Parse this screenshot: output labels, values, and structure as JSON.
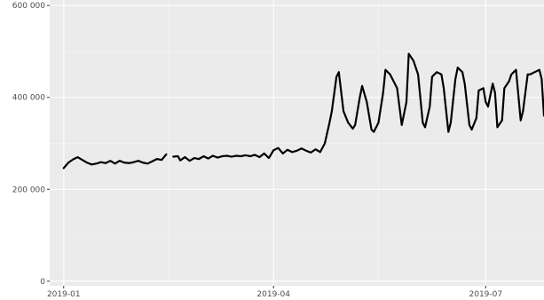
{
  "chart_data": {
    "type": "line",
    "title": "",
    "xlabel": "",
    "ylabel": "",
    "x_ticks": [
      {
        "date": "2019-01-01",
        "label": "2019-01"
      },
      {
        "date": "2019-04-01",
        "label": "2019-04"
      },
      {
        "date": "2019-07-01",
        "label": "2019-07"
      }
    ],
    "y_ticks": [
      {
        "value": 0,
        "label": "0"
      },
      {
        "value": 200000,
        "label": "200 000"
      },
      {
        "value": 400000,
        "label": "400 000"
      },
      {
        "value": 600000,
        "label": "600 000"
      }
    ],
    "xlim": [
      "2018-12-26",
      "2019-07-26"
    ],
    "ylim": [
      -10000,
      612000
    ],
    "grid": true,
    "colors": {
      "panel": "#ebebeb",
      "grid_major": "#ffffff",
      "grid_minor": "#f5f5f5",
      "line": "#000000"
    },
    "series": [
      {
        "segments": [
          [
            [
              "2019-01-01",
              246000
            ],
            [
              "2019-01-03",
              258000
            ],
            [
              "2019-01-05",
              265000
            ],
            [
              "2019-01-07",
              270000
            ],
            [
              "2019-01-09",
              264000
            ],
            [
              "2019-01-11",
              258000
            ],
            [
              "2019-01-13",
              254000
            ],
            [
              "2019-01-15",
              256000
            ],
            [
              "2019-01-17",
              259000
            ],
            [
              "2019-01-19",
              257000
            ],
            [
              "2019-01-21",
              262000
            ],
            [
              "2019-01-23",
              256000
            ],
            [
              "2019-01-25",
              262000
            ],
            [
              "2019-01-27",
              258000
            ],
            [
              "2019-01-29",
              257000
            ],
            [
              "2019-01-31",
              259000
            ],
            [
              "2019-02-02",
              262000
            ],
            [
              "2019-02-04",
              258000
            ],
            [
              "2019-02-06",
              256000
            ],
            [
              "2019-02-08",
              261000
            ],
            [
              "2019-02-10",
              266000
            ],
            [
              "2019-02-12",
              264000
            ],
            [
              "2019-02-14",
              276000
            ]
          ],
          [
            [
              "2019-02-17",
              271000
            ],
            [
              "2019-02-19",
              272000
            ],
            [
              "2019-02-20",
              263000
            ],
            [
              "2019-02-22",
              270000
            ],
            [
              "2019-02-24",
              262000
            ],
            [
              "2019-02-26",
              268000
            ],
            [
              "2019-02-28",
              266000
            ],
            [
              "2019-03-02",
              272000
            ],
            [
              "2019-03-04",
              267000
            ],
            [
              "2019-03-06",
              273000
            ],
            [
              "2019-03-08",
              269000
            ],
            [
              "2019-03-10",
              272000
            ],
            [
              "2019-03-12",
              273000
            ],
            [
              "2019-03-14",
              271000
            ],
            [
              "2019-03-16",
              273000
            ],
            [
              "2019-03-18",
              272000
            ],
            [
              "2019-03-20",
              274000
            ],
            [
              "2019-03-22",
              272000
            ],
            [
              "2019-03-24",
              275000
            ],
            [
              "2019-03-26",
              270000
            ],
            [
              "2019-03-28",
              278000
            ],
            [
              "2019-03-30",
              268000
            ],
            [
              "2019-04-01",
              285000
            ],
            [
              "2019-04-03",
              290000
            ],
            [
              "2019-04-05",
              278000
            ],
            [
              "2019-04-07",
              286000
            ],
            [
              "2019-04-09",
              281000
            ],
            [
              "2019-04-11",
              284000
            ],
            [
              "2019-04-13",
              289000
            ],
            [
              "2019-04-15",
              284000
            ],
            [
              "2019-04-17",
              280000
            ],
            [
              "2019-04-19",
              287000
            ],
            [
              "2019-04-21",
              281000
            ],
            [
              "2019-04-23",
              300000
            ],
            [
              "2019-04-25",
              345000
            ],
            [
              "2019-04-26",
              370000
            ],
            [
              "2019-04-28",
              445000
            ],
            [
              "2019-04-29",
              455000
            ],
            [
              "2019-05-01",
              370000
            ],
            [
              "2019-05-03",
              345000
            ],
            [
              "2019-05-05",
              332000
            ],
            [
              "2019-05-06",
              340000
            ],
            [
              "2019-05-08",
              400000
            ],
            [
              "2019-05-09",
              425000
            ],
            [
              "2019-05-11",
              390000
            ],
            [
              "2019-05-13",
              330000
            ],
            [
              "2019-05-14",
              325000
            ],
            [
              "2019-05-16",
              345000
            ],
            [
              "2019-05-18",
              410000
            ],
            [
              "2019-05-19",
              460000
            ],
            [
              "2019-05-21",
              450000
            ],
            [
              "2019-05-22",
              440000
            ],
            [
              "2019-05-24",
              420000
            ],
            [
              "2019-05-25",
              380000
            ],
            [
              "2019-05-26",
              340000
            ],
            [
              "2019-05-28",
              390000
            ],
            [
              "2019-05-29",
              495000
            ],
            [
              "2019-05-31",
              480000
            ],
            [
              "2019-06-02",
              450000
            ],
            [
              "2019-06-04",
              345000
            ],
            [
              "2019-06-05",
              335000
            ],
            [
              "2019-06-07",
              380000
            ],
            [
              "2019-06-08",
              445000
            ],
            [
              "2019-06-10",
              455000
            ],
            [
              "2019-06-12",
              450000
            ],
            [
              "2019-06-13",
              420000
            ],
            [
              "2019-06-15",
              325000
            ],
            [
              "2019-06-16",
              345000
            ],
            [
              "2019-06-18",
              440000
            ],
            [
              "2019-06-19",
              465000
            ],
            [
              "2019-06-21",
              455000
            ],
            [
              "2019-06-22",
              430000
            ],
            [
              "2019-06-24",
              340000
            ],
            [
              "2019-06-25",
              330000
            ],
            [
              "2019-06-27",
              355000
            ],
            [
              "2019-06-28",
              415000
            ],
            [
              "2019-06-30",
              420000
            ],
            [
              "2019-07-01",
              390000
            ],
            [
              "2019-07-02",
              380000
            ],
            [
              "2019-07-04",
              430000
            ],
            [
              "2019-07-05",
              410000
            ],
            [
              "2019-07-06",
              335000
            ],
            [
              "2019-07-08",
              350000
            ],
            [
              "2019-07-09",
              420000
            ],
            [
              "2019-07-11",
              435000
            ],
            [
              "2019-07-12",
              450000
            ],
            [
              "2019-07-14",
              460000
            ],
            [
              "2019-07-16",
              350000
            ],
            [
              "2019-07-17",
              370000
            ],
            [
              "2019-07-19",
              450000
            ],
            [
              "2019-07-20",
              450000
            ],
            [
              "2019-07-22",
              455000
            ],
            [
              "2019-07-24",
              460000
            ],
            [
              "2019-07-25",
              440000
            ],
            [
              "2019-07-26",
              360000
            ]
          ]
        ]
      }
    ]
  }
}
